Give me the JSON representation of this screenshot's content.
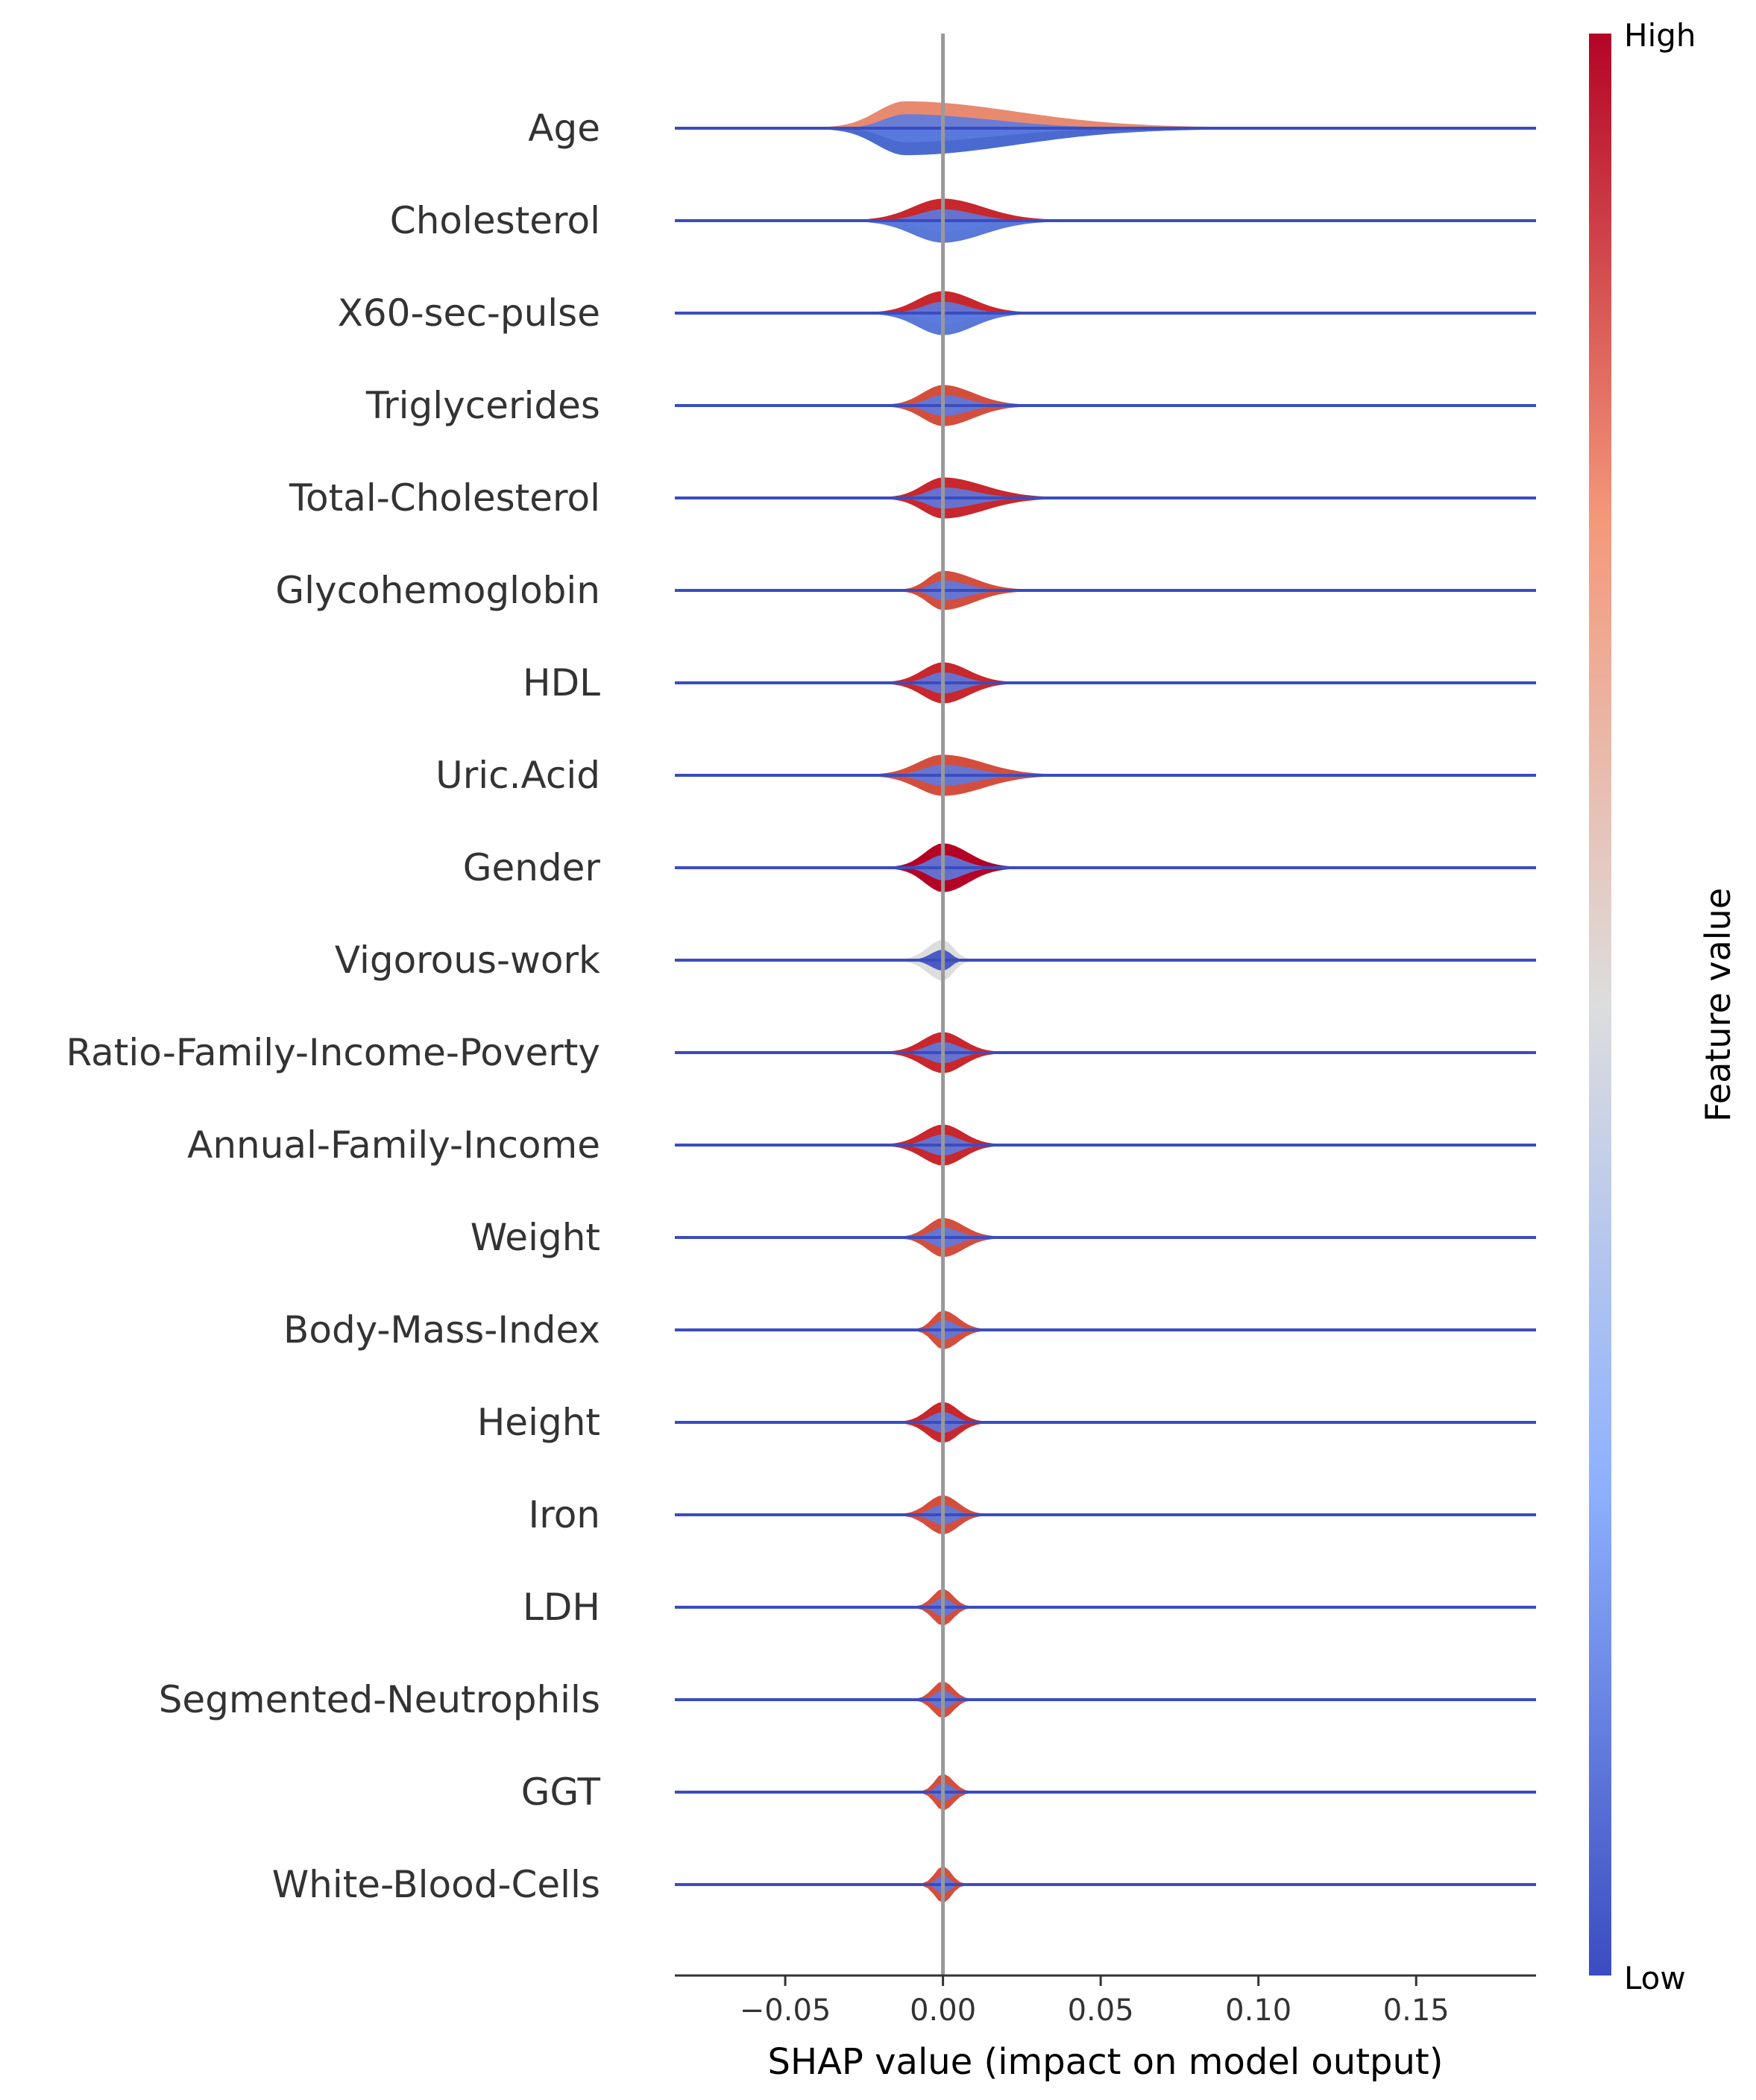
{
  "chart_data": {
    "type": "violin",
    "xlabel": "SHAP value (impact on model output)",
    "xlim": [
      -0.085,
      0.188
    ],
    "xticks": [
      -0.05,
      0.0,
      0.05,
      0.1,
      0.15
    ],
    "xtick_labels": [
      "−0.05",
      "0.00",
      "0.05",
      "0.10",
      "0.15"
    ],
    "colorbar": {
      "title": "Feature value",
      "high_label": "High",
      "low_label": "Low",
      "high_color": "#b40426",
      "mid_color": "#dddddd",
      "low_color": "#3b4cc0"
    },
    "features": [
      {
        "name": "Age",
        "center": -0.012,
        "spread_left": 0.028,
        "spread_right": 0.11,
        "max_half_width": 0.55,
        "color_top": "#e88a6f",
        "color_bottom": "#4a6ad0"
      },
      {
        "name": "Cholesterol",
        "center": 0.0,
        "spread_left": 0.03,
        "spread_right": 0.04,
        "max_half_width": 0.45,
        "color_top": "#c8272d",
        "color_bottom": "#5a78d8"
      },
      {
        "name": "X60-sec-pulse",
        "center": 0.0,
        "spread_left": 0.025,
        "spread_right": 0.03,
        "max_half_width": 0.45,
        "color_top": "#c8272d",
        "color_bottom": "#5a78d8"
      },
      {
        "name": "Triglycerides",
        "center": 0.0,
        "spread_left": 0.02,
        "spread_right": 0.03,
        "max_half_width": 0.42,
        "color_top": "#d44e3d",
        "color_bottom": "#d44e3d"
      },
      {
        "name": "Total-Cholesterol",
        "center": 0.0,
        "spread_left": 0.02,
        "spread_right": 0.04,
        "max_half_width": 0.42,
        "color_top": "#c8272d",
        "color_bottom": "#c8272d"
      },
      {
        "name": "Glycohemoglobin",
        "center": 0.0,
        "spread_left": 0.015,
        "spread_right": 0.03,
        "max_half_width": 0.4,
        "color_top": "#d44e3d",
        "color_bottom": "#d44e3d"
      },
      {
        "name": "HDL",
        "center": 0.0,
        "spread_left": 0.02,
        "spread_right": 0.025,
        "max_half_width": 0.42,
        "color_top": "#c8272d",
        "color_bottom": "#c8272d"
      },
      {
        "name": "Uric.Acid",
        "center": 0.0,
        "spread_left": 0.025,
        "spread_right": 0.04,
        "max_half_width": 0.42,
        "color_top": "#d44e3d",
        "color_bottom": "#d44e3d"
      },
      {
        "name": "Gender",
        "center": 0.0,
        "spread_left": 0.018,
        "spread_right": 0.025,
        "max_half_width": 0.5,
        "color_top": "#b40426",
        "color_bottom": "#b40426"
      },
      {
        "name": "Vigorous-work",
        "center": 0.0,
        "spread_left": 0.015,
        "spread_right": 0.01,
        "max_half_width": 0.42,
        "color_top": "#dddddd",
        "color_bottom": "#dddddd"
      },
      {
        "name": "Ratio-Family-Income-Poverty",
        "center": 0.0,
        "spread_left": 0.02,
        "spread_right": 0.02,
        "max_half_width": 0.42,
        "color_top": "#c8272d",
        "color_bottom": "#c8272d"
      },
      {
        "name": "Annual-Family-Income",
        "center": 0.0,
        "spread_left": 0.02,
        "spread_right": 0.02,
        "max_half_width": 0.42,
        "color_top": "#c8272d",
        "color_bottom": "#c8272d"
      },
      {
        "name": "Weight",
        "center": 0.0,
        "spread_left": 0.015,
        "spread_right": 0.02,
        "max_half_width": 0.4,
        "color_top": "#d44e3d",
        "color_bottom": "#d44e3d"
      },
      {
        "name": "Body-Mass-Index",
        "center": 0.0,
        "spread_left": 0.01,
        "spread_right": 0.015,
        "max_half_width": 0.4,
        "color_top": "#d44e3d",
        "color_bottom": "#d44e3d"
      },
      {
        "name": "Height",
        "center": 0.0,
        "spread_left": 0.015,
        "spread_right": 0.015,
        "max_half_width": 0.42,
        "color_top": "#c8272d",
        "color_bottom": "#c8272d"
      },
      {
        "name": "Iron",
        "center": 0.0,
        "spread_left": 0.015,
        "spread_right": 0.015,
        "max_half_width": 0.4,
        "color_top": "#d44e3d",
        "color_bottom": "#d44e3d"
      },
      {
        "name": "LDH",
        "center": 0.0,
        "spread_left": 0.01,
        "spread_right": 0.01,
        "max_half_width": 0.38,
        "color_top": "#d44e3d",
        "color_bottom": "#d44e3d"
      },
      {
        "name": "Segmented-Neutrophils",
        "center": 0.0,
        "spread_left": 0.01,
        "spread_right": 0.01,
        "max_half_width": 0.38,
        "color_top": "#d44e3d",
        "color_bottom": "#d44e3d"
      },
      {
        "name": "GGT",
        "center": 0.0,
        "spread_left": 0.008,
        "spread_right": 0.01,
        "max_half_width": 0.38,
        "color_top": "#d44e3d",
        "color_bottom": "#d44e3d"
      },
      {
        "name": "White-Blood-Cells",
        "center": 0.0,
        "spread_left": 0.008,
        "spread_right": 0.008,
        "max_half_width": 0.38,
        "color_top": "#d44e3d",
        "color_bottom": "#d44e3d"
      }
    ]
  }
}
